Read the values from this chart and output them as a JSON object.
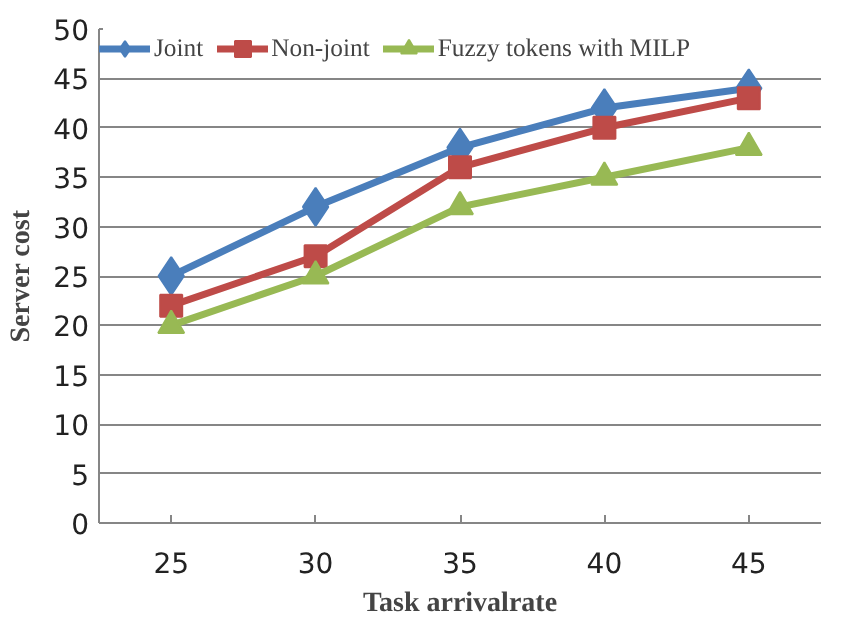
{
  "chart_data": {
    "type": "line",
    "xlabel": "Task arrivalrate",
    "ylabel": "Server cost",
    "categories": [
      "25",
      "30",
      "35",
      "40",
      "45"
    ],
    "series": [
      {
        "name": "Joint",
        "color": "#4a7ebb",
        "marker": "diamond",
        "values": [
          25,
          32,
          38,
          42,
          44
        ]
      },
      {
        "name": "Non-joint",
        "color": "#be4b48",
        "marker": "square",
        "values": [
          22,
          27,
          36,
          40,
          43
        ]
      },
      {
        "name": "Fuzzy tokens with MILP",
        "color": "#98b954",
        "marker": "triangle",
        "values": [
          20,
          25,
          32,
          35,
          38
        ]
      }
    ],
    "ylim": [
      0,
      50
    ],
    "yticks": [
      0,
      5,
      10,
      15,
      20,
      25,
      30,
      35,
      40,
      45,
      50
    ],
    "grid": "y",
    "legend": "top"
  }
}
